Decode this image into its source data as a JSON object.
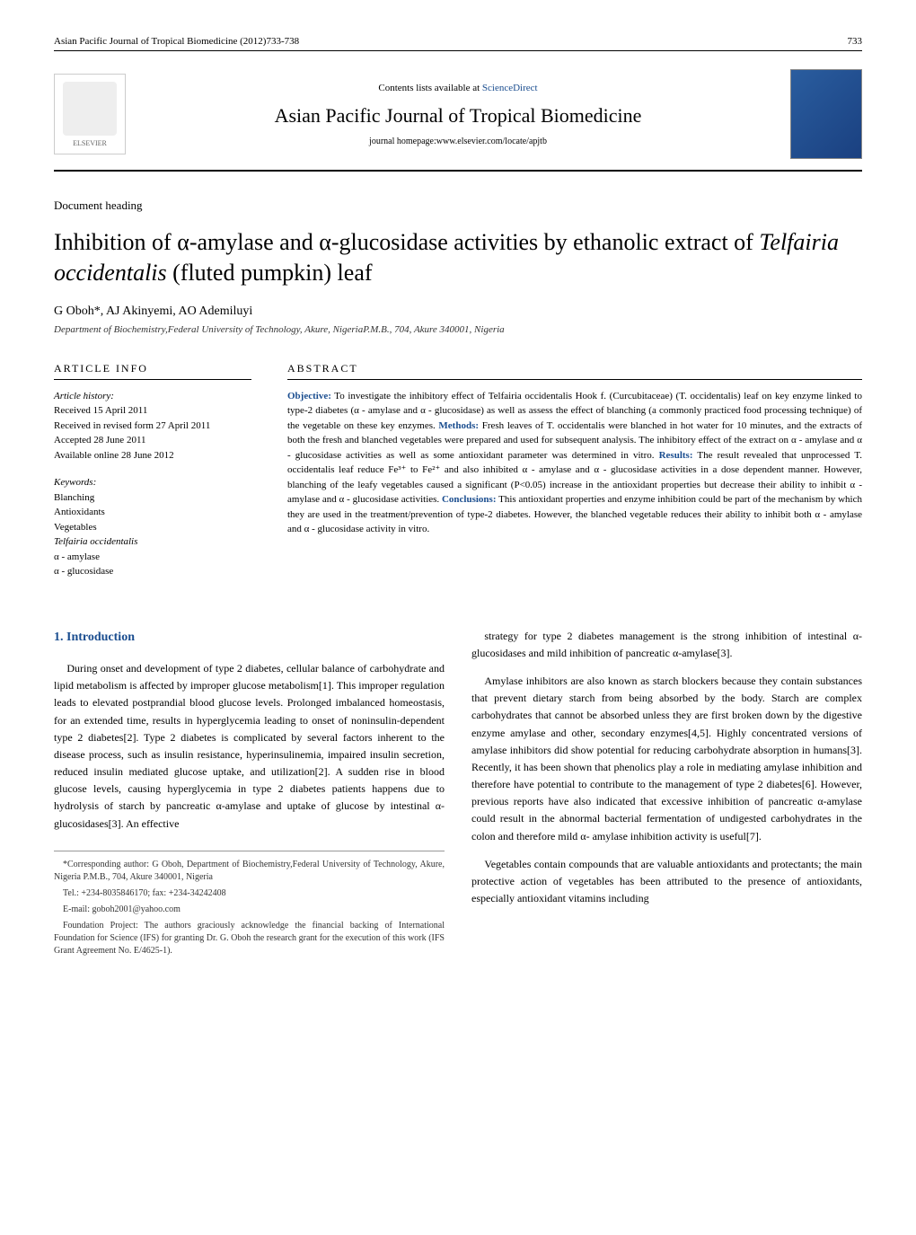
{
  "header": {
    "citation": "Asian Pacific Journal of Tropical Biomedicine (2012)733-738",
    "pageNumber": "733"
  },
  "masthead": {
    "publisherName": "ELSEVIER",
    "contentsPrefix": "Contents lists available at ",
    "contentsLink": "ScienceDirect",
    "journalName": "Asian Pacific Journal of Tropical Biomedicine",
    "homepage": "journal homepage:www.elsevier.com/locate/apjtb"
  },
  "docHeading": "Document heading",
  "title": "Inhibition of α-amylase and α-glucosidase activities by ethanolic extract of Telfairia occidentalis (fluted pumpkin) leaf",
  "authors": "G Oboh*, AJ Akinyemi,  AO Ademiluyi",
  "affiliation": "Department of Biochemistry,Federal University of Technology, Akure, NigeriaP.M.B., 704, Akure 340001, Nigeria",
  "articleInfo": {
    "heading": "ARTICLE INFO",
    "historyLabel": "Article history:",
    "history": [
      "Received 15 April 2011",
      "Received in revised form 27 April  2011",
      "Accepted  28  June 2011",
      "Available online 28  June 2012"
    ],
    "keywordsLabel": "Keywords:",
    "keywords": [
      "Blanching",
      "Antioxidants",
      "Vegetables",
      "Telfairia occidentalis",
      "α - amylase",
      "α - glucosidase"
    ]
  },
  "abstract": {
    "heading": "ABSTRACT",
    "labels": {
      "objective": "Objective:",
      "methods": "Methods:",
      "results": "Results:",
      "conclusions": "Conclusions:"
    },
    "objective": " To investigate the inhibitory effect of Telfairia occidentalis Hook f. (Curcubitaceae) (T. occidentalis) leaf on key enzyme linked to type-2 diabetes (α - amylase and α - glucosidase) as well as assess the effect of blanching (a commonly practiced food processing technique) of the vegetable on these key enzymes. ",
    "methods": " Fresh leaves of T. occidentalis were blanched in hot water for 10 minutes, and the extracts of both the fresh and blanched vegetables were prepared and used for subsequent analysis. The inhibitory effect of the extract on α - amylase and α - glucosidase activities as well as some antioxidant parameter was determined in vitro. ",
    "results": " The result revealed that unprocessed T. occidentalis leaf reduce Fe³⁺ to Fe²⁺ and also inhibited α - amylase and α - glucosidase activities in a dose dependent manner. However, blanching of the leafy vegetables caused a significant (P<0.05) increase in the antioxidant properties but decrease their ability to inhibit α - amylase and α - glucosidase activities. ",
    "conclusions": " This antioxidant properties and enzyme inhibition could be part of the mechanism by which they are used in the treatment/prevention of type-2 diabetes. However, the blanched vegetable reduces their ability to inhibit both α - amylase and α - glucosidase activity in vitro."
  },
  "section1": {
    "heading": "1. Introduction",
    "para1": "During onset and development of type 2 diabetes, cellular balance of carbohydrate and lipid metabolism is affected by improper glucose metabolism[1]. This improper regulation leads to elevated postprandial blood glucose levels. Prolonged imbalanced homeostasis, for an extended time, results in hyperglycemia leading to onset of noninsulin-dependent type 2 diabetes[2]. Type 2 diabetes is complicated by several factors inherent to the disease process, such as insulin resistance, hyperinsulinemia, impaired insulin secretion, reduced insulin mediated glucose uptake, and utilization[2]. A sudden rise in blood glucose levels, causing hyperglycemia in type 2 diabetes patients happens due to hydrolysis of starch by pancreatic α-amylase and uptake of glucose by intestinal α-glucosidases[3]. An effective",
    "para2": "strategy for type 2 diabetes management is the strong inhibition of intestinal α-glucosidases and mild inhibition of pancreatic α-amylase[3].",
    "para3": "Amylase inhibitors are also known as starch blockers because they contain substances that prevent dietary starch from being absorbed by the body. Starch are complex carbohydrates that cannot be absorbed unless they are first broken down by the digestive enzyme amylase and other, secondary enzymes[4,5]. Highly concentrated versions of amylase inhibitors did show potential for reducing carbohydrate absorption in humans[3]. Recently, it has been shown that phenolics play a role in mediating amylase inhibition and therefore have potential to contribute to the management of type 2 diabetes[6]. However, previous reports have also indicated that excessive inhibition of pancreatic α-amylase could result in the abnormal bacterial fermentation of undigested carbohydrates in the colon and therefore mild α- amylase inhibition activity is useful[7].",
    "para4": "Vegetables contain compounds that are valuable antioxidants and protectants; the main protective action of vegetables has been attributed to the presence of antioxidants, especially antioxidant vitamins including"
  },
  "footnotes": {
    "corr": "*Corresponding author: G Oboh, Department of Biochemistry,Federal University of Technology, Akure, Nigeria P.M.B., 704, Akure 340001, Nigeria",
    "tel": "Tel.: +234-8035846170; fax: +234-34242408",
    "email": "E-mail: goboh2001@yahoo.com",
    "funding": "Foundation Project: The authors graciously acknowledge the financial backing of International Foundation for Science (IFS) for granting Dr. G. Oboh the research grant for the execution of this work (IFS Grant Agreement No. E/4625-1)."
  },
  "colors": {
    "linkBlue": "#1a4d8f",
    "coverGradStart": "#2a5d9f",
    "coverGradEnd": "#1a4080"
  }
}
